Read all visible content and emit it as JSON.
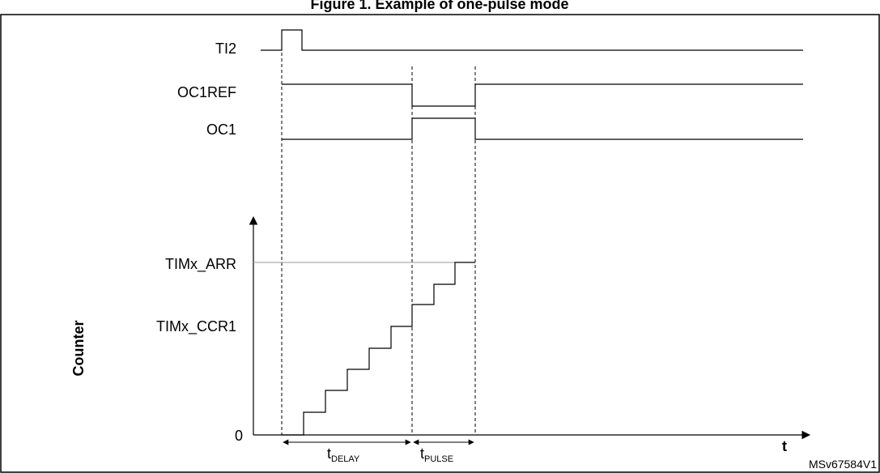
{
  "title": "Figure 1. Example of one-pulse mode",
  "signals": {
    "ti2": "TI2",
    "oc1ref": "OC1REF",
    "oc1": "OC1"
  },
  "axis": {
    "y_title": "Counter",
    "arr": "TIMx_ARR",
    "ccr1": "TIMx_CCR1",
    "zero": "0",
    "x_title": "t"
  },
  "intervals": {
    "delay_main": "t",
    "delay_sub": "DELAY",
    "pulse_main": "t",
    "pulse_sub": "PULSE"
  },
  "reference": "MSv67584V1"
}
